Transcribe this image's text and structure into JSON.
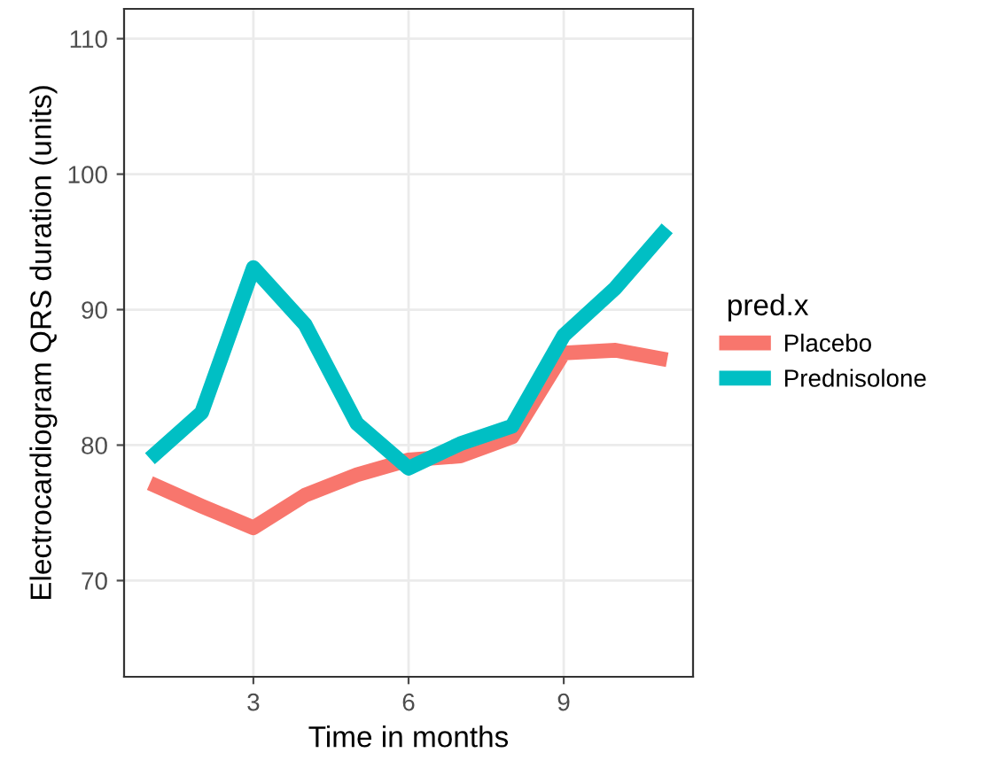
{
  "chart_data": {
    "type": "line",
    "xlabel": "Time in months",
    "ylabel": "Electrocardiogram QRS duration (units)",
    "legend_title": "pred.x",
    "x": [
      1,
      2,
      3,
      4,
      5,
      6,
      7,
      8,
      9,
      10,
      11
    ],
    "series": [
      {
        "name": "Placebo",
        "color": "#f8766d",
        "values": [
          77.2,
          75.5,
          73.9,
          76.3,
          77.8,
          78.9,
          79.2,
          80.6,
          86.8,
          87.0,
          86.3
        ]
      },
      {
        "name": "Prednisolone",
        "color": "#00bfc4",
        "values": [
          79.0,
          82.4,
          93.1,
          88.9,
          81.6,
          78.3,
          80.1,
          81.4,
          88.1,
          91.6,
          96.0
        ]
      }
    ],
    "xlim": [
      0.5,
      11.5
    ],
    "ylim": [
      62.9,
      112.2
    ],
    "xticks": [
      3,
      6,
      9
    ],
    "yticks": [
      70,
      80,
      90,
      100,
      110
    ],
    "grid": true,
    "legend": "right",
    "marker": "none",
    "line_style": "solid"
  }
}
